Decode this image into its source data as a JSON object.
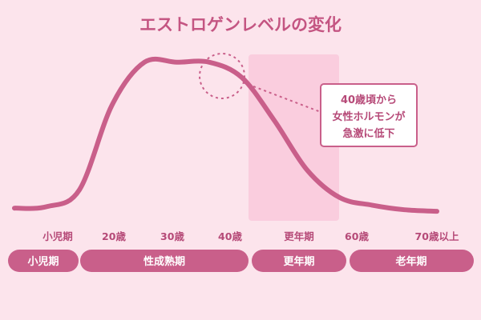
{
  "chart_data": {
    "type": "line",
    "title": "エストロゲンレベルの変化",
    "xlabel": "",
    "ylabel": "",
    "x_ticks": [
      "小児期",
      "20歳",
      "30歳",
      "40歳",
      "更年期",
      "60歳",
      "70歳以上"
    ],
    "series": [
      {
        "values": [
          3,
          4,
          15,
          70,
          98,
          98,
          98,
          88,
          60,
          28,
          10,
          5,
          2,
          1
        ]
      }
    ],
    "stages": [
      "小児期",
      "性成熟期",
      "更年期",
      "老年期"
    ],
    "highlight_band": "更年期",
    "annotation": [
      "40歳頃から",
      "女性ホルモンが",
      "急激に低下"
    ],
    "grid": false,
    "legend": "none",
    "colors": {
      "background": "#fce4ec",
      "line": "#c95f8a",
      "band": "#f9c9dc",
      "text": "#b64a78",
      "pill": "#c95f8a"
    }
  }
}
